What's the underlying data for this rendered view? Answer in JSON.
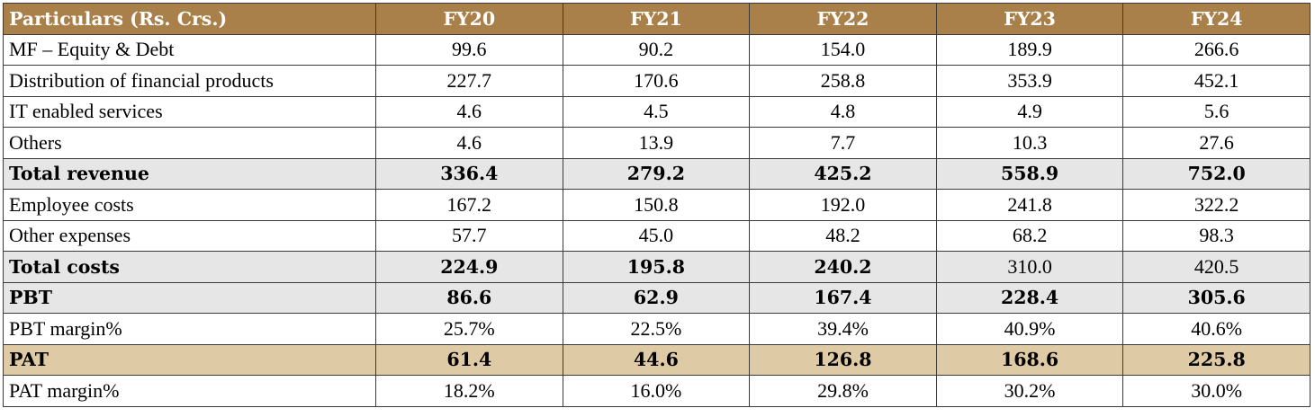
{
  "table": {
    "headers": [
      "Particulars (Rs. Crs.)",
      "FY20",
      "FY21",
      "FY22",
      "FY23",
      "FY24"
    ],
    "rows": [
      {
        "label": "MF – Equity & Debt",
        "values": [
          "99.6",
          "90.2",
          "154.0",
          "189.9",
          "266.6"
        ],
        "style": "plain"
      },
      {
        "label": "Distribution of financial products",
        "values": [
          "227.7",
          "170.6",
          "258.8",
          "353.9",
          "452.1"
        ],
        "style": "plain"
      },
      {
        "label": "IT enabled services",
        "values": [
          "4.6",
          "4.5",
          "4.8",
          "4.9",
          "5.6"
        ],
        "style": "plain"
      },
      {
        "label": "Others",
        "values": [
          "4.6",
          "13.9",
          "7.7",
          "10.3",
          "27.6"
        ],
        "style": "plain"
      },
      {
        "label": "Total revenue",
        "values": [
          "336.4",
          "279.2",
          "425.2",
          "558.9",
          "752.0"
        ],
        "style": "grey-bold"
      },
      {
        "label": "Employee costs",
        "values": [
          "167.2",
          "150.8",
          "192.0",
          "241.8",
          "322.2"
        ],
        "style": "plain"
      },
      {
        "label": "Other expenses",
        "values": [
          "57.7",
          "45.0",
          "48.2",
          "68.2",
          "98.3"
        ],
        "style": "plain"
      },
      {
        "label": "Total costs",
        "values": [
          "224.9",
          "195.8",
          "240.2",
          "310.0",
          "420.5"
        ],
        "style": "grey-bold-partial",
        "bold_count": 3
      },
      {
        "label": "PBT",
        "values": [
          "86.6",
          "62.9",
          "167.4",
          "228.4",
          "305.6"
        ],
        "style": "grey-bold"
      },
      {
        "label": "PBT margin%",
        "values": [
          "25.7%",
          "22.5%",
          "39.4%",
          "40.9%",
          "40.6%"
        ],
        "style": "plain"
      },
      {
        "label": "PAT",
        "values": [
          "61.4",
          "44.6",
          "126.8",
          "168.6",
          "225.8"
        ],
        "style": "tan-bold"
      },
      {
        "label": "PAT margin%",
        "values": [
          "18.2%",
          "16.0%",
          "29.8%",
          "30.2%",
          "30.0%"
        ],
        "style": "plain"
      }
    ]
  },
  "colors": {
    "header_bg": "#a97f4a",
    "header_text": "#ffffff",
    "highlight_grey": "#e6e6e6",
    "highlight_tan": "#dfcaa6",
    "border": "#3a3a3a"
  }
}
